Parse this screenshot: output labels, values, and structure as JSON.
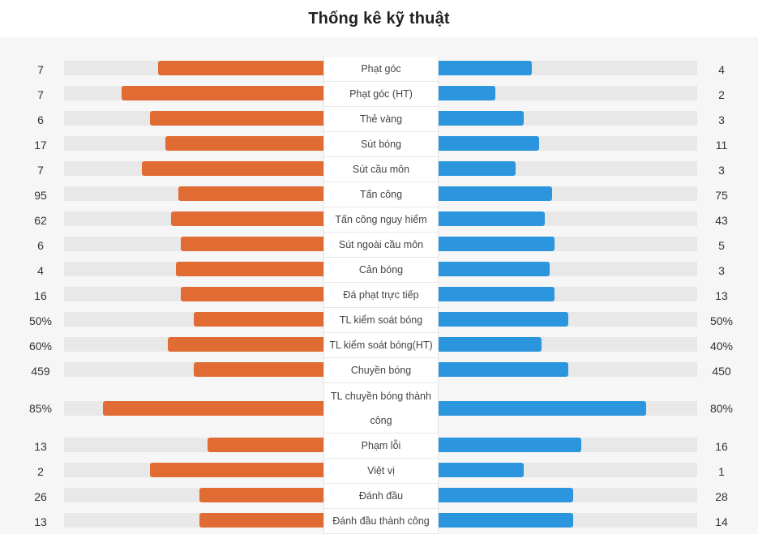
{
  "title": "Thống kê kỹ thuật",
  "colors": {
    "home": "#e06b33",
    "away": "#2b96dd",
    "track": "#e8e8e8"
  },
  "stats": [
    {
      "label": "Phạt góc",
      "home": "7",
      "away": "4",
      "home_ratio": 0.64,
      "away_ratio": 0.36
    },
    {
      "label": "Phạt góc (HT)",
      "home": "7",
      "away": "2",
      "home_ratio": 0.78,
      "away_ratio": 0.22
    },
    {
      "label": "Thẻ vàng",
      "home": "6",
      "away": "3",
      "home_ratio": 0.67,
      "away_ratio": 0.33
    },
    {
      "label": "Sút bóng",
      "home": "17",
      "away": "11",
      "home_ratio": 0.61,
      "away_ratio": 0.39
    },
    {
      "label": "Sút cầu môn",
      "home": "7",
      "away": "3",
      "home_ratio": 0.7,
      "away_ratio": 0.3
    },
    {
      "label": "Tấn công",
      "home": "95",
      "away": "75",
      "home_ratio": 0.56,
      "away_ratio": 0.44
    },
    {
      "label": "Tấn công nguy hiểm",
      "home": "62",
      "away": "43",
      "home_ratio": 0.59,
      "away_ratio": 0.41
    },
    {
      "label": "Sút ngoài cầu môn",
      "home": "6",
      "away": "5",
      "home_ratio": 0.55,
      "away_ratio": 0.45
    },
    {
      "label": "Cản bóng",
      "home": "4",
      "away": "3",
      "home_ratio": 0.57,
      "away_ratio": 0.43
    },
    {
      "label": "Đá phạt trực tiếp",
      "home": "16",
      "away": "13",
      "home_ratio": 0.55,
      "away_ratio": 0.45
    },
    {
      "label": "TL kiểm soát bóng",
      "home": "50%",
      "away": "50%",
      "home_ratio": 0.5,
      "away_ratio": 0.5
    },
    {
      "label": "TL kiểm soát bóng(HT)",
      "home": "60%",
      "away": "40%",
      "home_ratio": 0.6,
      "away_ratio": 0.4
    },
    {
      "label": "Chuyền bóng",
      "home": "459",
      "away": "450",
      "home_ratio": 0.5,
      "away_ratio": 0.5
    },
    {
      "label": "TL chuyền bóng thành công",
      "home": "85%",
      "away": "80%",
      "home_ratio": 0.85,
      "away_ratio": 0.8
    },
    {
      "label": "Phạm lỗi",
      "home": "13",
      "away": "16",
      "home_ratio": 0.45,
      "away_ratio": 0.55
    },
    {
      "label": "Việt vị",
      "home": "2",
      "away": "1",
      "home_ratio": 0.67,
      "away_ratio": 0.33
    },
    {
      "label": "Đánh đầu",
      "home": "26",
      "away": "28",
      "home_ratio": 0.48,
      "away_ratio": 0.52
    },
    {
      "label": "Đánh đầu thành công",
      "home": "13",
      "away": "14",
      "home_ratio": 0.48,
      "away_ratio": 0.52
    }
  ]
}
